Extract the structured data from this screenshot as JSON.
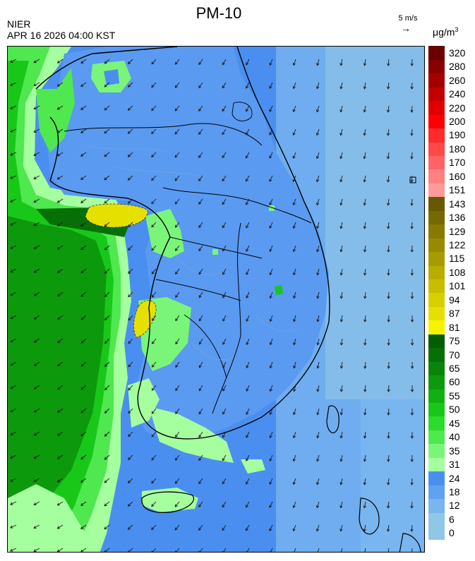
{
  "header": {
    "title": "PM-10",
    "agency": "NIER",
    "timestamp": "APR 16 2026 04:00 KST",
    "wind_reference": "5 m/s",
    "unit_base": "μg/m",
    "unit_exp": "3"
  },
  "legend": {
    "bins": [
      {
        "label": "0",
        "color": "#8fc7e6"
      },
      {
        "label": "6",
        "color": "#8fc7e6"
      },
      {
        "label": "12",
        "color": "#79b5ef"
      },
      {
        "label": "18",
        "color": "#5fa2f1"
      },
      {
        "label": "24",
        "color": "#4a8ff0"
      },
      {
        "label": "31",
        "color": "#a6ff9e"
      },
      {
        "label": "35",
        "color": "#7af57a"
      },
      {
        "label": "40",
        "color": "#4fe84f"
      },
      {
        "label": "45",
        "color": "#2bdb2b"
      },
      {
        "label": "50",
        "color": "#18c818"
      },
      {
        "label": "55",
        "color": "#10b010"
      },
      {
        "label": "60",
        "color": "#0c9a0c"
      },
      {
        "label": "65",
        "color": "#088508"
      },
      {
        "label": "70",
        "color": "#067006"
      },
      {
        "label": "75",
        "color": "#045c04"
      },
      {
        "label": "81",
        "color": "#f4f400"
      },
      {
        "label": "87",
        "color": "#e6e000"
      },
      {
        "label": "94",
        "color": "#d8cf00"
      },
      {
        "label": "101",
        "color": "#c8bd00"
      },
      {
        "label": "108",
        "color": "#b8ac00"
      },
      {
        "label": "115",
        "color": "#a89b00"
      },
      {
        "label": "122",
        "color": "#988a00"
      },
      {
        "label": "129",
        "color": "#887900"
      },
      {
        "label": "136",
        "color": "#786800"
      },
      {
        "label": "143",
        "color": "#685800"
      },
      {
        "label": "151",
        "color": "#ff9a9a"
      },
      {
        "label": "160",
        "color": "#ff8080"
      },
      {
        "label": "170",
        "color": "#ff6464"
      },
      {
        "label": "180",
        "color": "#ff4848"
      },
      {
        "label": "190",
        "color": "#ff2a2a"
      },
      {
        "label": "200",
        "color": "#ff0000"
      },
      {
        "label": "220",
        "color": "#e00000"
      },
      {
        "label": "240",
        "color": "#c20000"
      },
      {
        "label": "260",
        "color": "#a40000"
      },
      {
        "label": "280",
        "color": "#880000"
      },
      {
        "label": "320",
        "color": "#6a0000"
      }
    ]
  }
}
